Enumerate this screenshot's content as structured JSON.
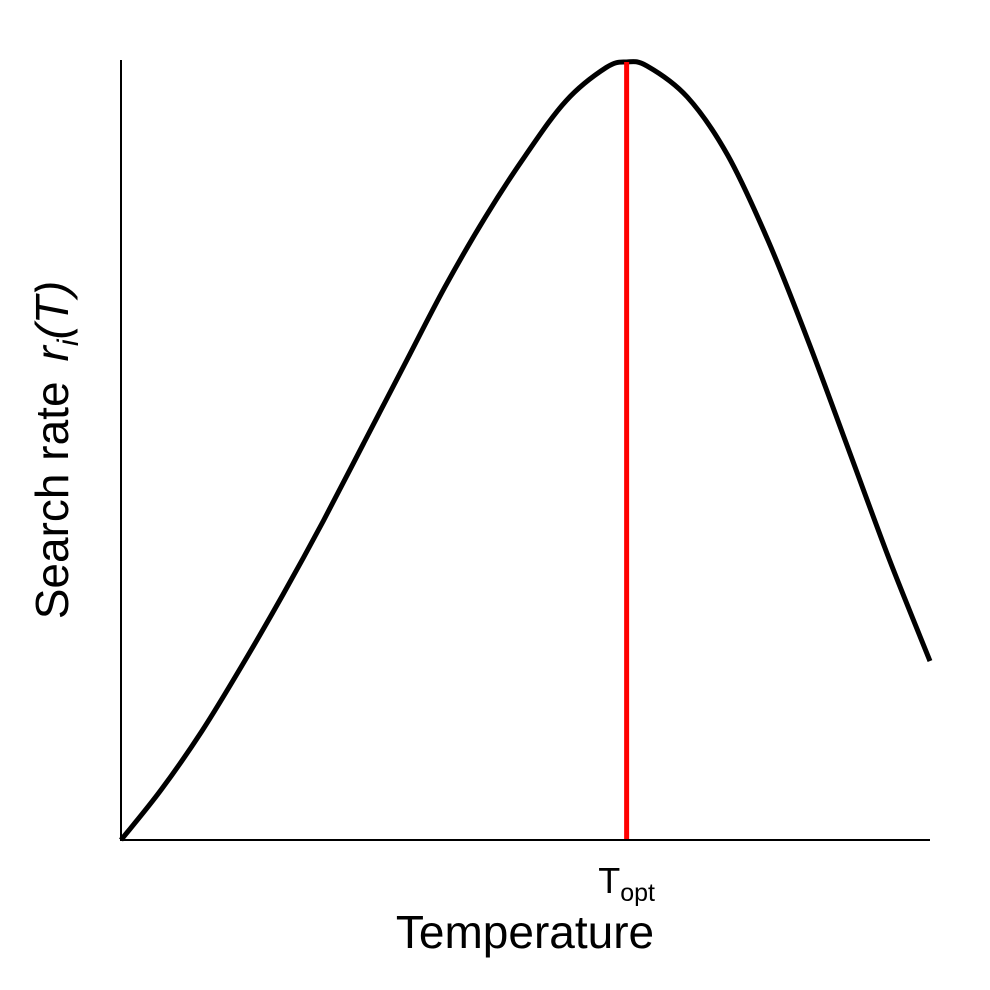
{
  "chart_data": {
    "type": "line",
    "title": "",
    "xlabel": "Temperature",
    "ylabel": {
      "text": "Search rate",
      "symbol": "r",
      "subscript": "i",
      "argument": "(T)"
    },
    "x_tick": {
      "base": "T",
      "subscript": "opt",
      "x": 0.625
    },
    "xlim": [
      0,
      1
    ],
    "ylim": [
      0,
      1
    ],
    "series": [
      {
        "x": [
          0,
          0.05,
          0.1,
          0.15,
          0.2,
          0.25,
          0.3,
          0.35,
          0.4,
          0.45,
          0.5,
          0.55,
          0.6,
          0.625,
          0.65,
          0.7,
          0.75,
          0.8,
          0.85,
          0.9,
          0.95,
          1.0
        ],
        "values": [
          0,
          0.065,
          0.14,
          0.225,
          0.315,
          0.41,
          0.51,
          0.61,
          0.71,
          0.8,
          0.88,
          0.95,
          0.993,
          1.0,
          0.995,
          0.955,
          0.88,
          0.77,
          0.64,
          0.5,
          0.36,
          0.23
        ]
      }
    ],
    "vline": {
      "x": 0.625,
      "color": "#ff0000"
    },
    "line_color": "#000000",
    "grid": false
  }
}
